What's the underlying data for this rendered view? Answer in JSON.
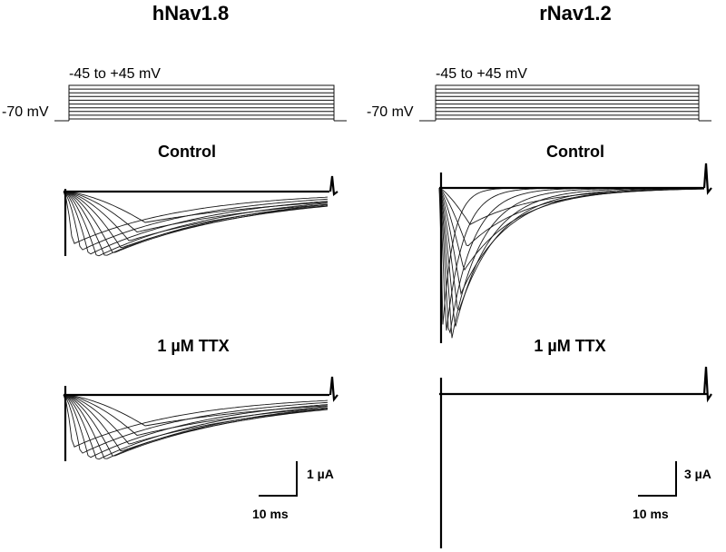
{
  "panels": [
    {
      "id": "nav18",
      "title": "hNav1.8",
      "protocol": {
        "step_label": "-45 to +45 mV",
        "holding_label": "-70 mV",
        "steps": 10
      },
      "conditions": [
        {
          "label": "Control",
          "trace_type": "slow"
        },
        {
          "label": "1 µM TTX",
          "trace_type": "slow"
        }
      ],
      "scale_bar": {
        "current_label": "1 µA",
        "time_label": "10 ms"
      }
    },
    {
      "id": "nav12",
      "title": "rNav1.2",
      "protocol": {
        "step_label": "-45 to +45 mV",
        "holding_label": "-70 mV",
        "steps": 10
      },
      "conditions": [
        {
          "label": "Control",
          "trace_type": "fast"
        },
        {
          "label": "1 µM TTX",
          "trace_type": "blocked"
        }
      ],
      "scale_bar": {
        "current_label": "3 µA",
        "time_label": "10 ms"
      }
    }
  ],
  "colors": {
    "trace": "#1a1a1a",
    "background": "#ffffff"
  }
}
